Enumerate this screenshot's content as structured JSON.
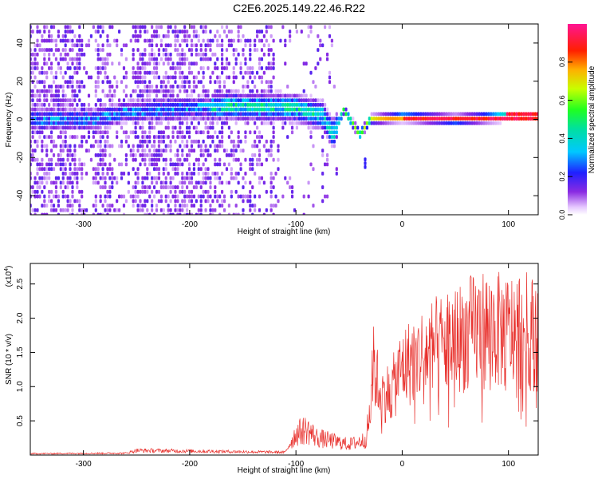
{
  "title": "C2E6.2025.149.22.46.R22",
  "colors": {
    "snr_line": "#e8302c",
    "background": "#ffffff",
    "axis": "#000000"
  },
  "chart_data": [
    {
      "type": "heatmap",
      "xlabel": "Height of straight line (km)",
      "ylabel": "Frequency (Hz)",
      "xlim": [
        -350,
        128
      ],
      "ylim": [
        -50,
        50
      ],
      "x_ticks": [
        -300,
        -200,
        -100,
        0,
        100
      ],
      "x_tick_labels": [
        "-300",
        "-200",
        "-100",
        "0",
        "100"
      ],
      "y_ticks": [
        -40,
        -20,
        0,
        20,
        40
      ],
      "y_tick_labels": [
        "-40",
        "-20",
        "0",
        "20",
        "40"
      ],
      "colorbar": {
        "label": "Normalized spectral amplitude",
        "range": [
          0,
          1
        ],
        "ticks": [
          0.0,
          0.2,
          0.4,
          0.6,
          0.8
        ],
        "tick_labels": [
          "0.0",
          "0.2",
          "0.4",
          "0.6",
          "0.8"
        ],
        "colormap": "rainbow (white-violet-blue-cyan-green-yellow-red-magenta)"
      },
      "ridge": {
        "description_points": [
          {
            "x": -290,
            "y": 0
          },
          {
            "x": -260,
            "y": 4
          },
          {
            "x": -160,
            "y": 7
          },
          {
            "x": -100,
            "y": 6
          },
          {
            "x": -75,
            "y": 2
          },
          {
            "x": -65,
            "y": -8
          },
          {
            "x": -55,
            "y": 5
          },
          {
            "x": -40,
            "y": -8
          },
          {
            "x": -30,
            "y": 0
          },
          {
            "x": 0,
            "y": 1
          },
          {
            "x": 50,
            "y": 0
          },
          {
            "x": 128,
            "y": 2
          }
        ]
      }
    },
    {
      "type": "line",
      "xlabel": "Height of straight line (km)",
      "ylabel": "SNR (10 * v/v)",
      "multiplier_label": "(x10",
      "multiplier_exp": "4",
      "xlim": [
        -350,
        128
      ],
      "ylim": [
        0,
        28000
      ],
      "x_ticks": [
        -300,
        -200,
        -100,
        0,
        100
      ],
      "x_tick_labels": [
        "-300",
        "-200",
        "-100",
        "0",
        "100"
      ],
      "y_ticks": [
        5000,
        10000,
        15000,
        20000,
        25000
      ],
      "y_tick_labels": [
        "0.5",
        "1.0",
        "1.5",
        "2.0",
        "2.5"
      ],
      "envelope": [
        {
          "x": -350,
          "y": 300
        },
        {
          "x": -260,
          "y": 400
        },
        {
          "x": -250,
          "y": 1000
        },
        {
          "x": -110,
          "y": 600
        },
        {
          "x": -100,
          "y": 5000
        },
        {
          "x": -90,
          "y": 6000
        },
        {
          "x": -80,
          "y": 4000
        },
        {
          "x": -50,
          "y": 2500
        },
        {
          "x": -35,
          "y": 3500
        },
        {
          "x": -30,
          "y": 9000
        },
        {
          "x": -28,
          "y": 20000
        },
        {
          "x": -20,
          "y": 13000
        },
        {
          "x": -10,
          "y": 14000
        },
        {
          "x": 0,
          "y": 19000
        },
        {
          "x": 20,
          "y": 22000
        },
        {
          "x": 50,
          "y": 25000
        },
        {
          "x": 75,
          "y": 27500
        },
        {
          "x": 100,
          "y": 26500
        },
        {
          "x": 110,
          "y": 27500
        },
        {
          "x": 128,
          "y": 26000
        }
      ]
    }
  ]
}
